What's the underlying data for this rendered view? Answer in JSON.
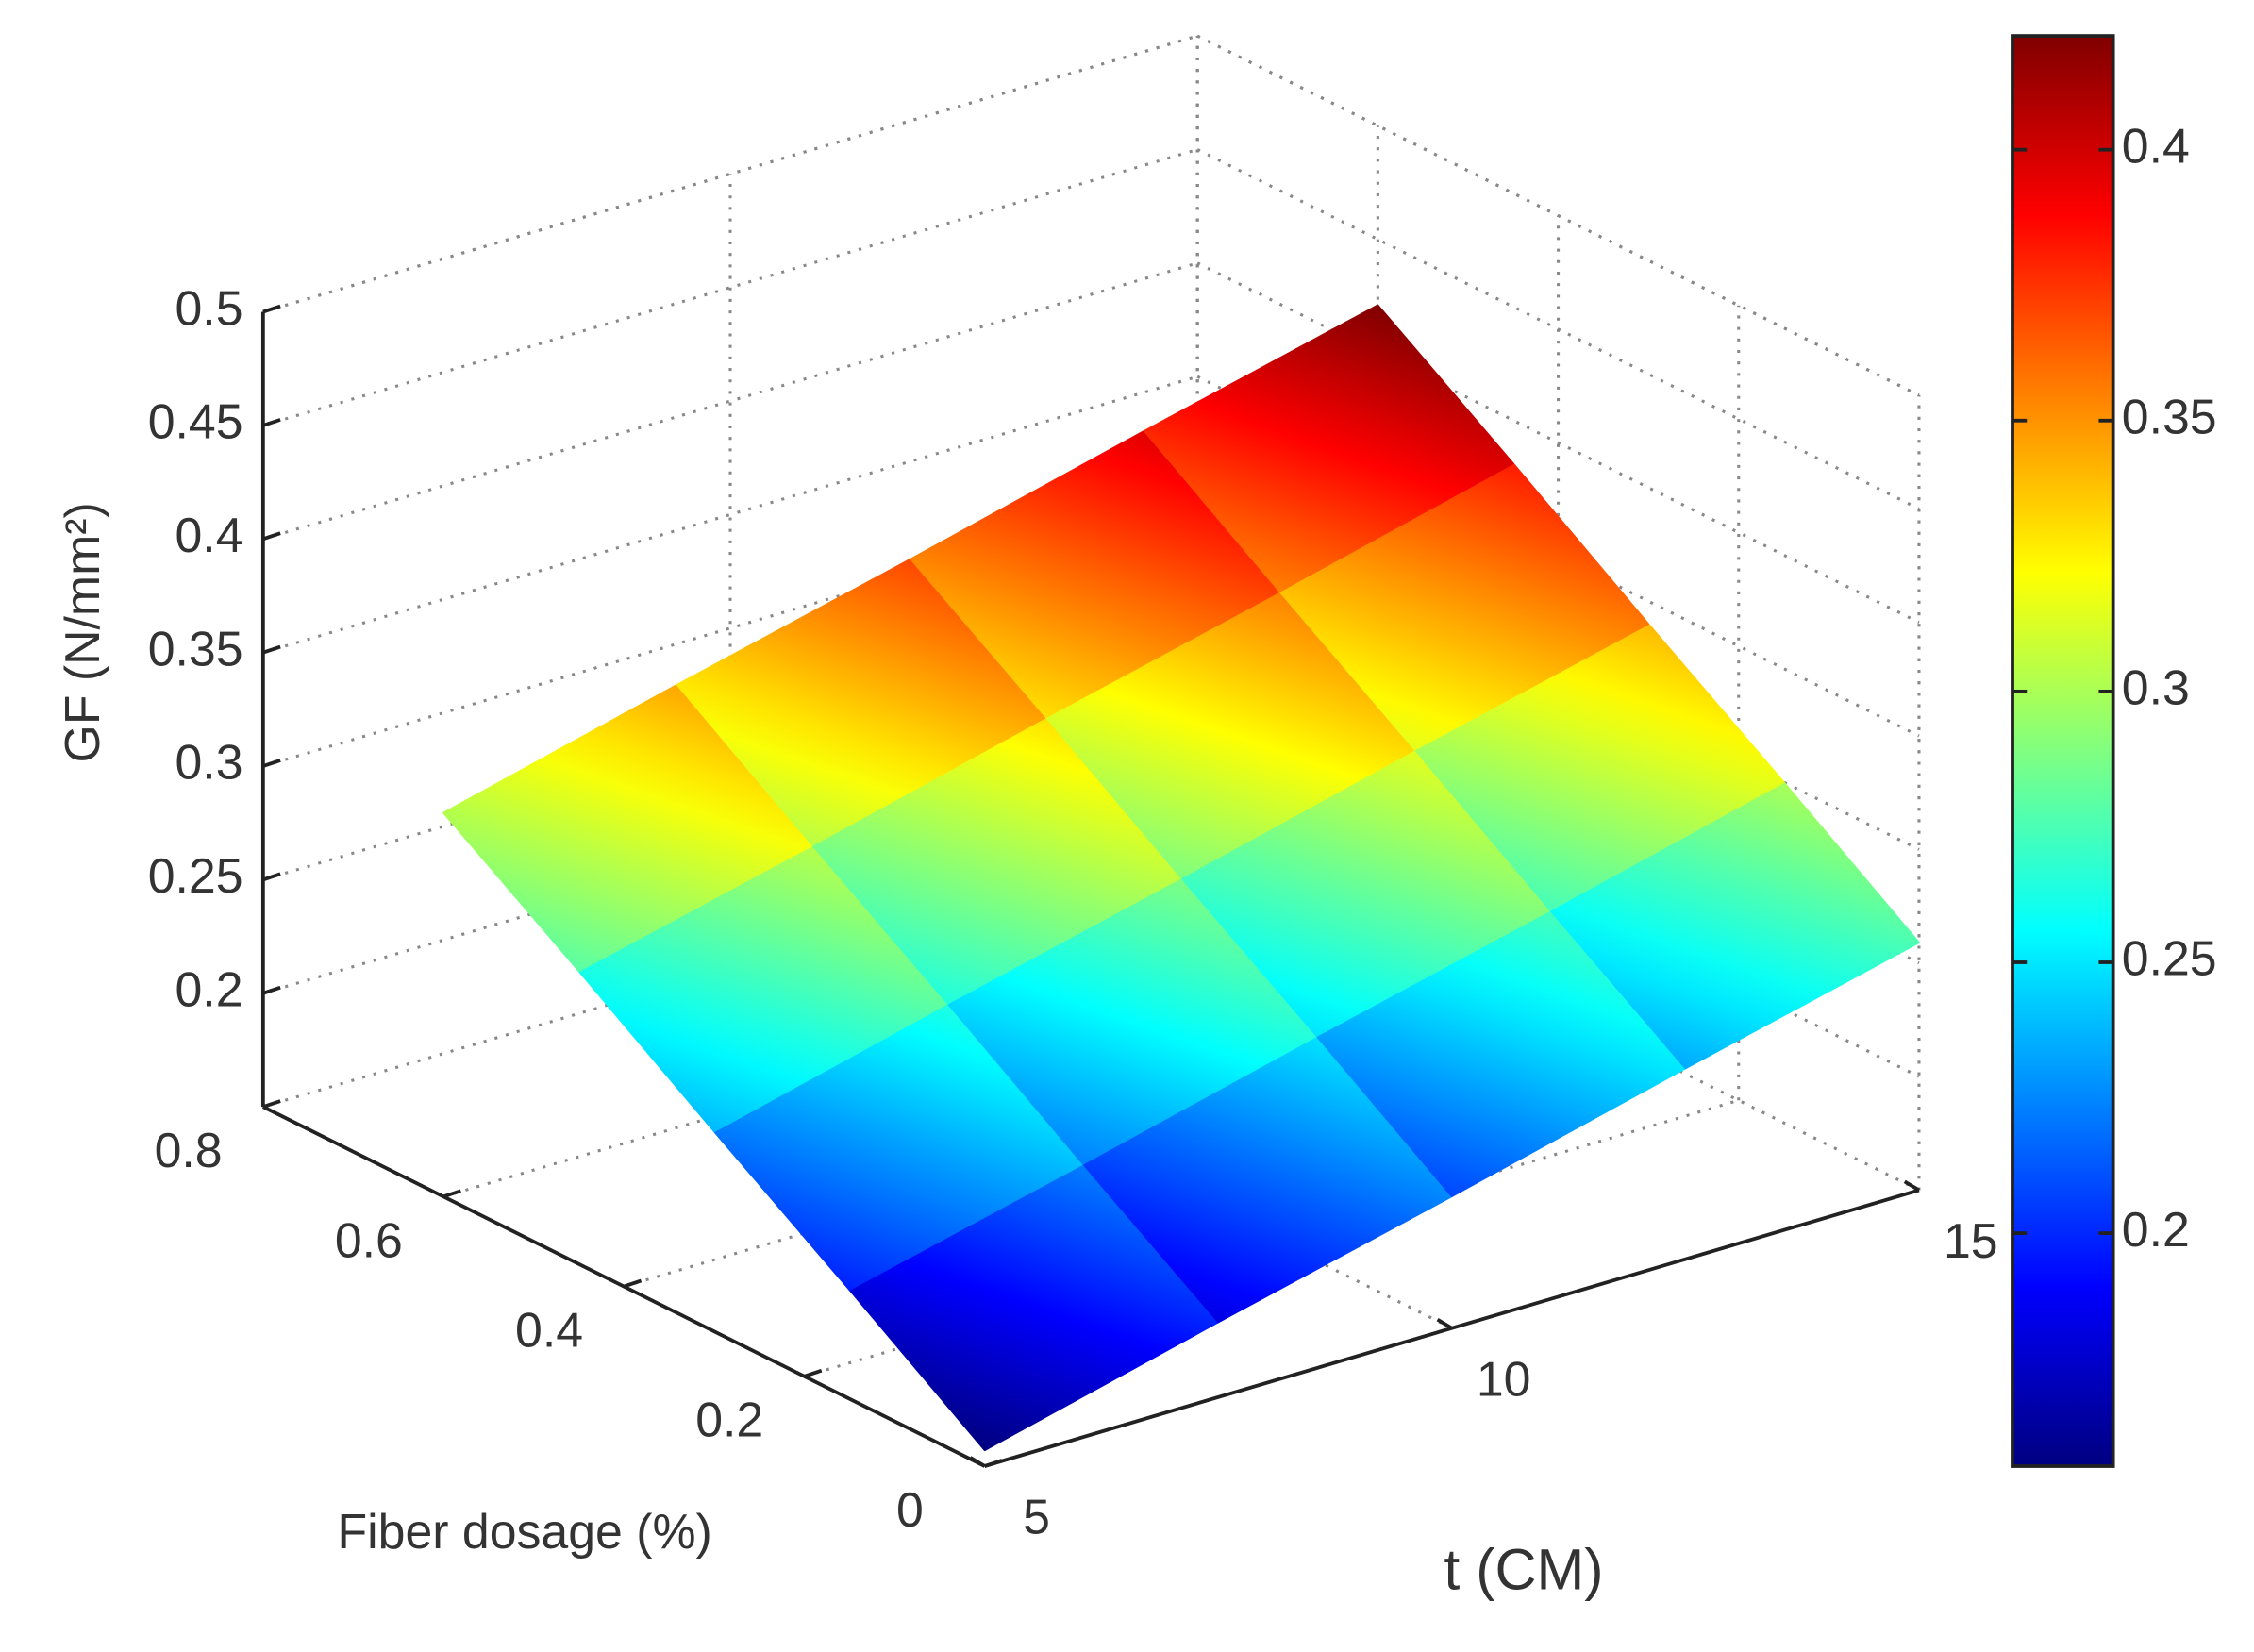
{
  "chart_data": {
    "type": "surface",
    "x_label": "t (CM)",
    "y_label": "Fiber dosage (%)",
    "z_label": "GF (N/mm²)",
    "x": [
      5,
      7.5,
      10,
      12.5,
      15
    ],
    "y": [
      0,
      0.15,
      0.3,
      0.45,
      0.6
    ],
    "z": [
      [
        0.157,
        0.183,
        0.208,
        0.234,
        0.259
      ],
      [
        0.198,
        0.223,
        0.249,
        0.274,
        0.3
      ],
      [
        0.238,
        0.264,
        0.289,
        0.315,
        0.34
      ],
      [
        0.279,
        0.304,
        0.33,
        0.355,
        0.381
      ],
      [
        0.319,
        0.345,
        0.37,
        0.396,
        0.421
      ]
    ],
    "xlim": [
      5,
      15
    ],
    "xticks": [
      5,
      10,
      15
    ],
    "ylim": [
      0,
      0.8
    ],
    "yticks": [
      0,
      0.2,
      0.4,
      0.6,
      0.8
    ],
    "zlim": [
      0.15,
      0.5
    ],
    "zticks": [
      0.2,
      0.25,
      0.3,
      0.35,
      0.4,
      0.45,
      0.5
    ],
    "colormap": "jet",
    "clim": [
      0.157,
      0.421
    ],
    "colorbar_ticks": [
      0.2,
      0.25,
      0.3,
      0.35,
      0.4
    ],
    "grid": true
  }
}
